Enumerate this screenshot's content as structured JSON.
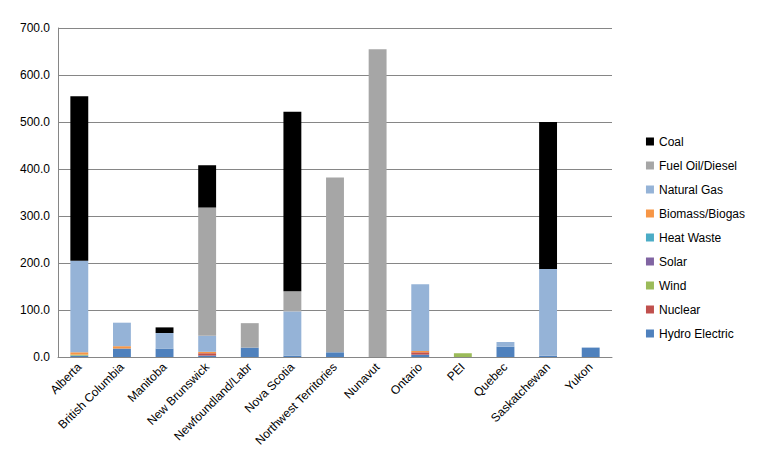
{
  "chart_data": {
    "type": "bar",
    "stacked": true,
    "grid": true,
    "legend": "right",
    "categories": [
      "Alberta",
      "British Columbia",
      "Manitoba",
      "New Brunswick",
      "Newfoundland/Labr",
      "Nova Scotia",
      "Northwest Territories",
      "Nunavut",
      "Ontario",
      "PEI",
      "Quebec",
      "Saskatchewan",
      "Yukon"
    ],
    "ylim": [
      0,
      700
    ],
    "yticks": [
      {
        "value": 0,
        "label": "0.0"
      },
      {
        "value": 100,
        "label": "100.0"
      },
      {
        "value": 200,
        "label": "200.0"
      },
      {
        "value": 300,
        "label": "300.0"
      },
      {
        "value": 400,
        "label": "400.0"
      },
      {
        "value": 500,
        "label": "500.0"
      },
      {
        "value": 600,
        "label": "600.0"
      },
      {
        "value": 700,
        "label": "700.0"
      }
    ],
    "series": [
      {
        "name": "Hydro Electric",
        "color": "#4f81bd",
        "values": [
          3,
          18,
          18,
          3,
          20,
          3,
          10,
          0,
          5,
          0,
          22,
          3,
          20
        ]
      },
      {
        "name": "Nuclear",
        "color": "#c0504d",
        "values": [
          0,
          0,
          0,
          5,
          0,
          0,
          0,
          0,
          5,
          0,
          0,
          0,
          0
        ]
      },
      {
        "name": "Wind",
        "color": "#9bbb59",
        "values": [
          2,
          0,
          0,
          0,
          0,
          0,
          0,
          0,
          0,
          8,
          0,
          0,
          0
        ]
      },
      {
        "name": "Solar",
        "color": "#8064a2",
        "values": [
          0,
          0,
          0,
          0,
          0,
          0,
          0,
          0,
          0,
          0,
          0,
          0,
          0
        ]
      },
      {
        "name": "Heat Waste",
        "color": "#4bacc6",
        "values": [
          0,
          0,
          0,
          0,
          0,
          0,
          0,
          0,
          0,
          0,
          0,
          0,
          0
        ]
      },
      {
        "name": "Biomass/Biogas",
        "color": "#f79646",
        "values": [
          5,
          5,
          0,
          3,
          0,
          0,
          0,
          0,
          3,
          0,
          0,
          0,
          0
        ]
      },
      {
        "name": "Natural Gas",
        "color": "#95b3d7",
        "values": [
          195,
          50,
          33,
          34,
          0,
          94,
          0,
          0,
          142,
          0,
          10,
          184,
          0
        ]
      },
      {
        "name": "Fuel Oil/Diesel",
        "color": "#a6a6a6",
        "values": [
          0,
          0,
          0,
          273,
          52,
          43,
          372,
          655,
          0,
          0,
          0,
          0,
          0
        ]
      },
      {
        "name": "Coal",
        "color": "#000000",
        "values": [
          350,
          0,
          12,
          90,
          0,
          382,
          0,
          0,
          0,
          0,
          0,
          313,
          0
        ]
      }
    ]
  }
}
